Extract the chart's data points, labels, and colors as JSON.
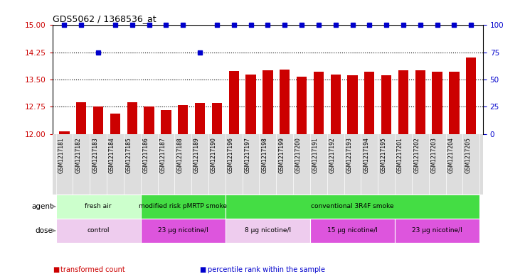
{
  "title": "GDS5062 / 1368536_at",
  "samples": [
    "GSM1217181",
    "GSM1217182",
    "GSM1217183",
    "GSM1217184",
    "GSM1217185",
    "GSM1217186",
    "GSM1217187",
    "GSM1217188",
    "GSM1217189",
    "GSM1217190",
    "GSM1217196",
    "GSM1217197",
    "GSM1217198",
    "GSM1217199",
    "GSM1217200",
    "GSM1217191",
    "GSM1217192",
    "GSM1217193",
    "GSM1217194",
    "GSM1217195",
    "GSM1217201",
    "GSM1217202",
    "GSM1217203",
    "GSM1217204",
    "GSM1217205"
  ],
  "bar_values": [
    12.07,
    12.88,
    12.75,
    12.57,
    12.88,
    12.75,
    12.65,
    12.8,
    12.85,
    12.85,
    13.73,
    13.63,
    13.75,
    13.78,
    13.58,
    13.72,
    13.63,
    13.62,
    13.72,
    13.62,
    13.75,
    13.75,
    13.72,
    13.72,
    14.1
  ],
  "percentile_values": [
    100,
    100,
    75,
    100,
    100,
    100,
    100,
    100,
    75,
    100,
    100,
    100,
    100,
    100,
    100,
    100,
    100,
    100,
    100,
    100,
    100,
    100,
    100,
    100,
    100
  ],
  "bar_color": "#cc0000",
  "percentile_color": "#0000cc",
  "ylim_left": [
    12,
    15
  ],
  "ylim_right": [
    0,
    100
  ],
  "yticks_left": [
    12,
    12.75,
    13.5,
    14.25,
    15
  ],
  "yticks_right": [
    0,
    25,
    50,
    75,
    100
  ],
  "dotted_yticks": [
    12.75,
    13.5,
    14.25
  ],
  "agent_groups": [
    {
      "label": "fresh air",
      "start": 0,
      "end": 5,
      "color": "#ccffcc"
    },
    {
      "label": "modified risk pMRTP smoke",
      "start": 5,
      "end": 10,
      "color": "#44dd44"
    },
    {
      "label": "conventional 3R4F smoke",
      "start": 10,
      "end": 25,
      "color": "#44dd44"
    }
  ],
  "dose_groups": [
    {
      "label": "control",
      "start": 0,
      "end": 5,
      "color": "#eeccee"
    },
    {
      "label": "23 μg nicotine/l",
      "start": 5,
      "end": 10,
      "color": "#dd55dd"
    },
    {
      "label": "8 μg nicotine/l",
      "start": 10,
      "end": 15,
      "color": "#eeccee"
    },
    {
      "label": "15 μg nicotine/l",
      "start": 15,
      "end": 20,
      "color": "#dd55dd"
    },
    {
      "label": "23 μg nicotine/l",
      "start": 20,
      "end": 25,
      "color": "#dd55dd"
    }
  ],
  "agent_label": "agent",
  "dose_label": "dose",
  "legend": [
    {
      "label": "transformed count",
      "color": "#cc0000"
    },
    {
      "label": "percentile rank within the sample",
      "color": "#0000cc"
    }
  ],
  "background_color": "#ffffff",
  "xtick_bg_color": "#dddddd",
  "fig_width": 7.38,
  "fig_height": 3.93,
  "fig_dpi": 100
}
